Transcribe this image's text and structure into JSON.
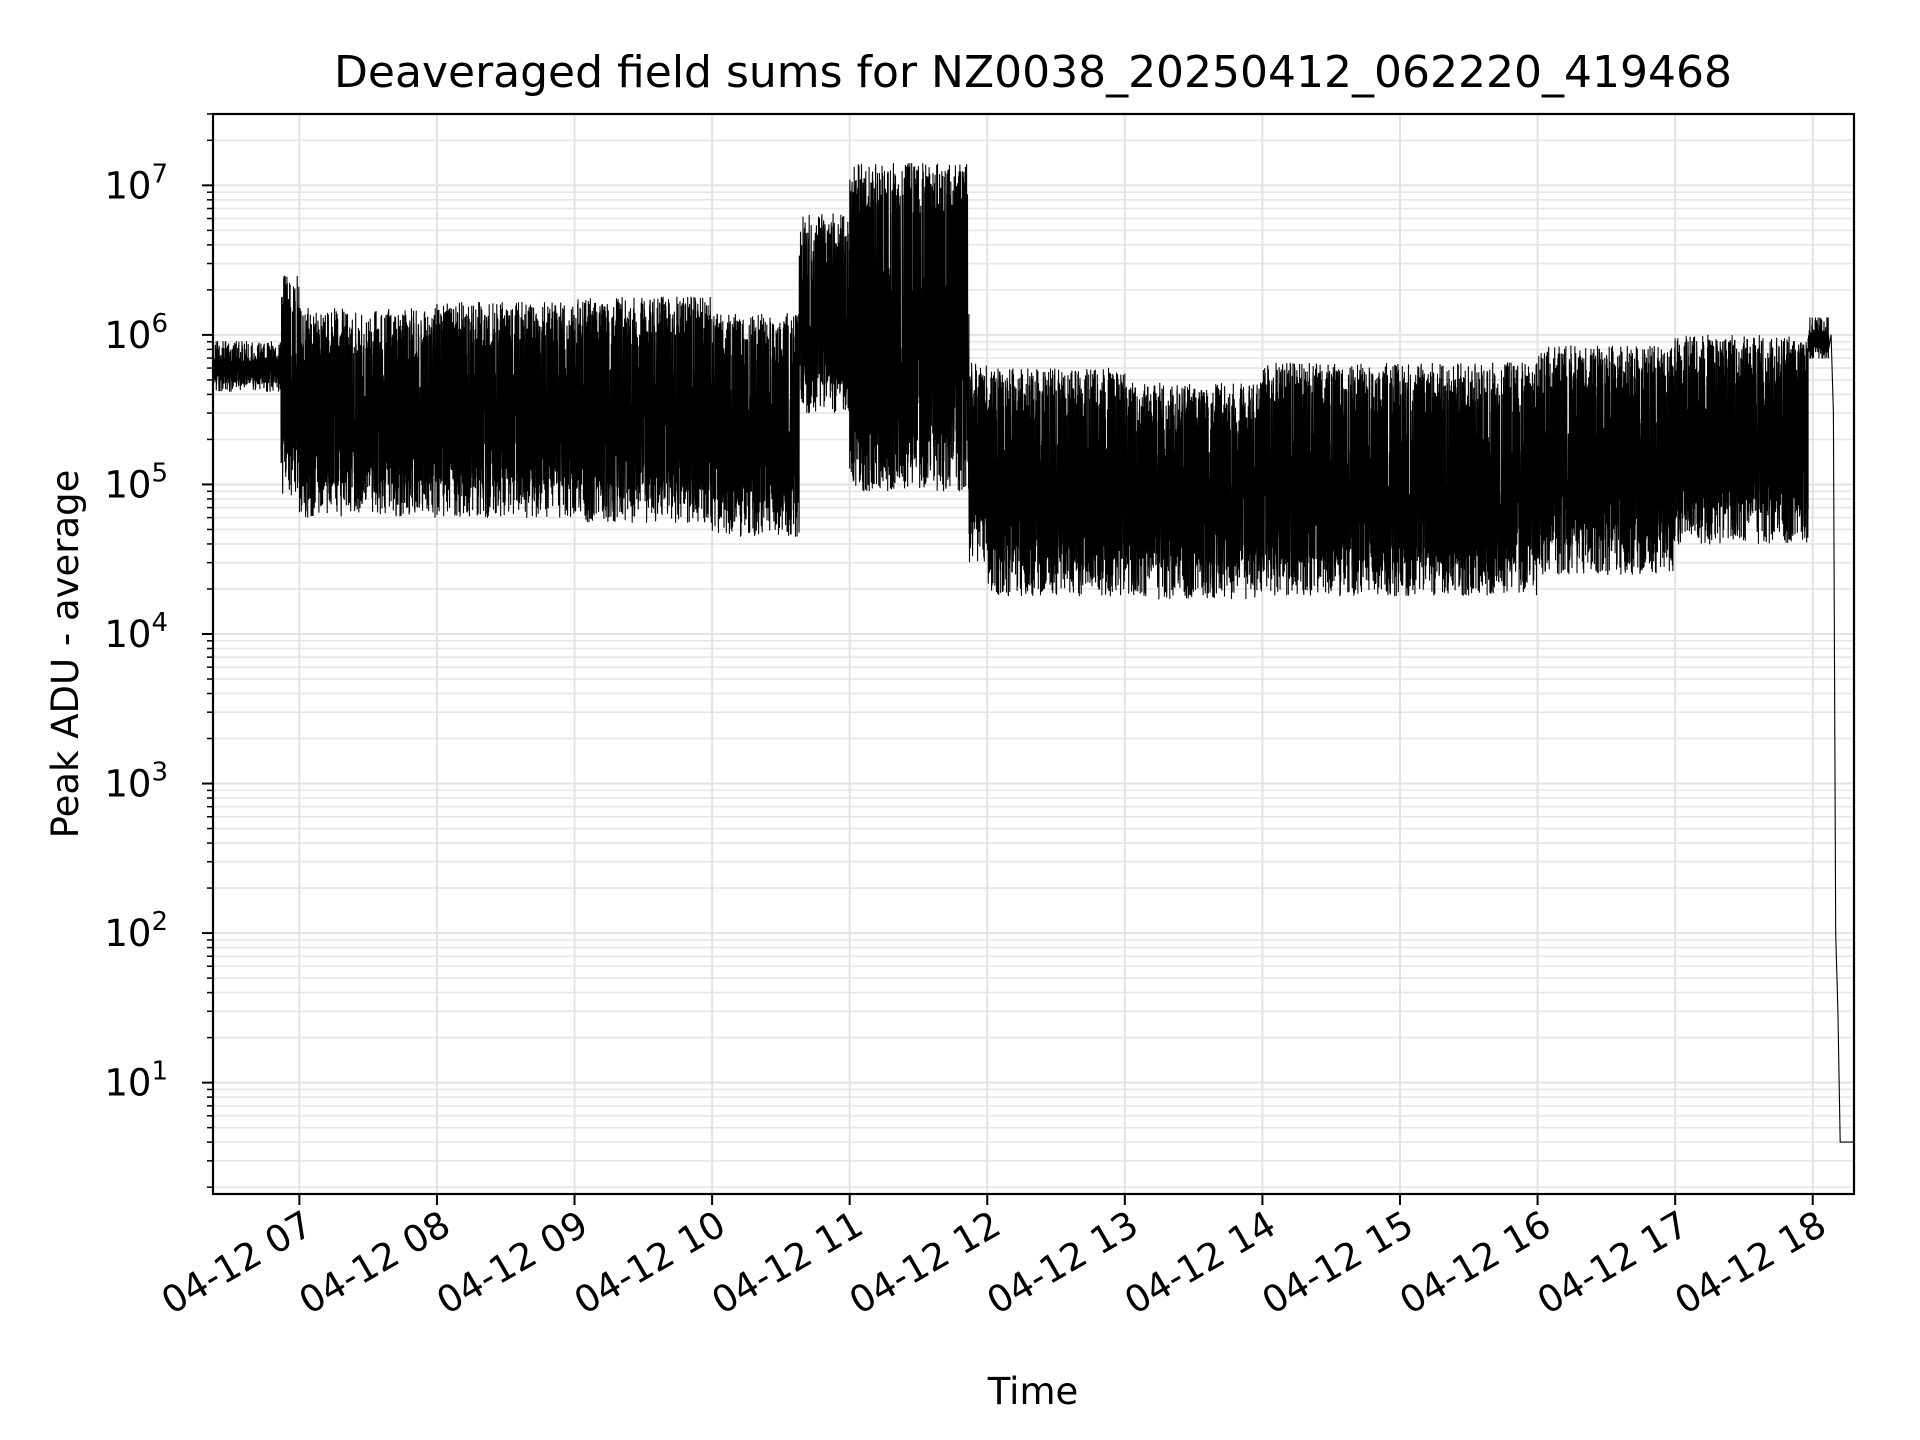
{
  "chart_data": {
    "type": "line",
    "title": "Deaveraged field sums for NZ0038_20250412_062220_419468",
    "xlabel": "Time",
    "ylabel": "Peak ADU - average",
    "yscale": "log",
    "ylim": [
      1.8,
      30000000
    ],
    "xlim": [
      "2025-04-12T06:22:20",
      "2025-04-12T18:18:00"
    ],
    "grid": true,
    "line_color": "#000000",
    "x_ticks": [
      {
        "value": "2025-04-12T07:00",
        "label": "04-12 07"
      },
      {
        "value": "2025-04-12T08:00",
        "label": "04-12 08"
      },
      {
        "value": "2025-04-12T09:00",
        "label": "04-12 09"
      },
      {
        "value": "2025-04-12T10:00",
        "label": "04-12 10"
      },
      {
        "value": "2025-04-12T11:00",
        "label": "04-12 11"
      },
      {
        "value": "2025-04-12T12:00",
        "label": "04-12 12"
      },
      {
        "value": "2025-04-12T13:00",
        "label": "04-12 13"
      },
      {
        "value": "2025-04-12T14:00",
        "label": "04-12 14"
      },
      {
        "value": "2025-04-12T15:00",
        "label": "04-12 15"
      },
      {
        "value": "2025-04-12T16:00",
        "label": "04-12 16"
      },
      {
        "value": "2025-04-12T17:00",
        "label": "04-12 17"
      },
      {
        "value": "2025-04-12T18:00",
        "label": "04-12 18"
      }
    ],
    "y_ticks": [
      {
        "value": 10,
        "mantissa": "10",
        "exponent": "1"
      },
      {
        "value": 100,
        "mantissa": "10",
        "exponent": "2"
      },
      {
        "value": 1000,
        "mantissa": "10",
        "exponent": "3"
      },
      {
        "value": 10000,
        "mantissa": "10",
        "exponent": "4"
      },
      {
        "value": 100000,
        "mantissa": "10",
        "exponent": "5"
      },
      {
        "value": 1000000,
        "mantissa": "10",
        "exponent": "6"
      },
      {
        "value": 10000000,
        "mantissa": "10",
        "exponent": "7"
      }
    ],
    "series": [
      {
        "segments": [
          {
            "start": "2025-04-12T06:22:20",
            "end": "2025-04-12T06:52",
            "low": 420000,
            "high": 900000
          },
          {
            "start": "2025-04-12T06:52",
            "end": "2025-04-12T07:00",
            "low": 85000,
            "high": 2500000
          },
          {
            "start": "2025-04-12T07:00",
            "end": "2025-04-12T08:00",
            "low": 60000,
            "high": 1500000
          },
          {
            "start": "2025-04-12T08:00",
            "end": "2025-04-12T09:00",
            "low": 60000,
            "high": 1650000
          },
          {
            "start": "2025-04-12T09:00",
            "end": "2025-04-12T10:00",
            "low": 55000,
            "high": 1800000
          },
          {
            "start": "2025-04-12T10:00",
            "end": "2025-04-12T10:38",
            "low": 45000,
            "high": 1400000
          },
          {
            "start": "2025-04-12T10:38",
            "end": "2025-04-12T11:00",
            "low": 300000,
            "high": 6500000
          },
          {
            "start": "2025-04-12T11:00",
            "end": "2025-04-12T11:52",
            "low": 90000,
            "high": 14000000
          },
          {
            "start": "2025-04-12T11:52",
            "end": "2025-04-12T12:00",
            "low": 30000,
            "high": 650000
          },
          {
            "start": "2025-04-12T12:00",
            "end": "2025-04-12T13:00",
            "low": 18000,
            "high": 600000
          },
          {
            "start": "2025-04-12T13:00",
            "end": "2025-04-12T14:00",
            "low": 17000,
            "high": 480000
          },
          {
            "start": "2025-04-12T14:00",
            "end": "2025-04-12T15:00",
            "low": 18000,
            "high": 650000
          },
          {
            "start": "2025-04-12T15:00",
            "end": "2025-04-12T16:00",
            "low": 18000,
            "high": 650000
          },
          {
            "start": "2025-04-12T16:00",
            "end": "2025-04-12T17:00",
            "low": 25000,
            "high": 850000
          },
          {
            "start": "2025-04-12T17:00",
            "end": "2025-04-12T17:58",
            "low": 40000,
            "high": 1000000
          },
          {
            "start": "2025-04-12T17:58",
            "end": "2025-04-12T18:07",
            "low": 700000,
            "high": 1300000
          }
        ],
        "tail": [
          {
            "x": "2025-04-12T18:08",
            "y": 1000000
          },
          {
            "x": "2025-04-12T18:09",
            "y": 300000
          },
          {
            "x": "2025-04-12T18:10",
            "y": 100
          },
          {
            "x": "2025-04-12T18:11",
            "y": 30
          },
          {
            "x": "2025-04-12T18:12",
            "y": 4
          },
          {
            "x": "2025-04-12T18:18",
            "y": 4
          }
        ]
      }
    ]
  }
}
